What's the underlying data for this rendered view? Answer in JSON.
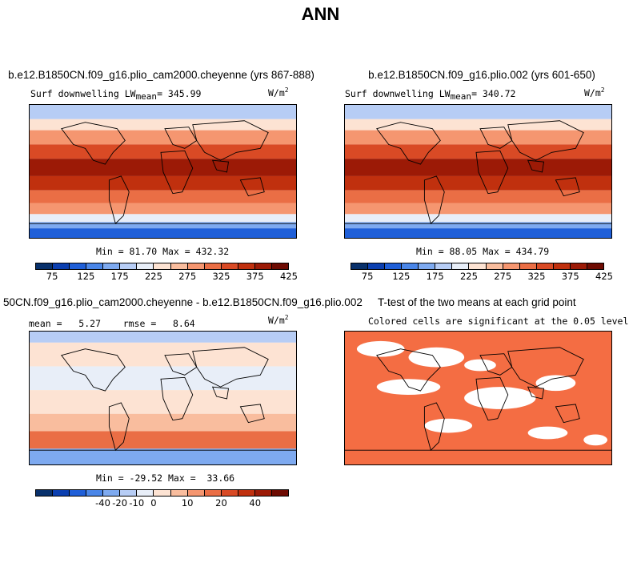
{
  "title": "ANN",
  "panels": {
    "p1": {
      "title": "b.e12.B1850CN.f09_g16.plio_cam2000.cheyenne (yrs 867-888)",
      "variable": "Surf downwelling LW",
      "mean_label": "mean",
      "mean_value": "= 345.99",
      "units_base": "W/m",
      "units_exp": "2",
      "min_max": "Min =  81.70 Max = 432.32"
    },
    "p2": {
      "title": "b.e12.B1850CN.f09_g16.plio.002 (yrs 601-650)",
      "variable": "Surf downwelling LW",
      "mean_label": "mean",
      "mean_value": "= 340.72",
      "units_base": "W/m",
      "units_exp": "2",
      "min_max": "Min =  88.05 Max = 434.79"
    },
    "p3": {
      "title": "50CN.f09_g16.plio_cam2000.cheyenne - b.e12.B1850CN.f09_g16.plio.002",
      "stats": "mean =   5.27    rmse =   8.64",
      "units_base": "W/m",
      "units_exp": "2",
      "min_max": "Min = -29.52 Max =  33.66"
    },
    "p4": {
      "title": "T-test of the two means at each grid point",
      "subtitle": "Colored cells are significant at the 0.05 level"
    }
  },
  "colorbars": {
    "absolute": {
      "colors": [
        "#08306b",
        "#0b3fb0",
        "#1f5fd8",
        "#4a86e8",
        "#7eaaf0",
        "#b7cdf5",
        "#e8eef8",
        "#fde3d3",
        "#f9bd9e",
        "#f59670",
        "#ea6e45",
        "#d94a25",
        "#c0300e",
        "#9c1a06",
        "#6e0b02"
      ],
      "tick_labels": [
        "75",
        "125",
        "175",
        "225",
        "275",
        "325",
        "375",
        "425"
      ]
    },
    "difference": {
      "colors": [
        "#08306b",
        "#0b3fb0",
        "#1f5fd8",
        "#4a86e8",
        "#7eaaf0",
        "#b7cdf5",
        "#e8eef8",
        "#fde3d3",
        "#f9bd9e",
        "#f59670",
        "#ea6e45",
        "#d94a25",
        "#c0300e",
        "#9c1a06",
        "#6e0b02"
      ],
      "tick_labels": [
        "-40",
        "-20",
        "-10",
        "0",
        "10",
        "20",
        "40"
      ]
    }
  },
  "significance_color": "#f46d43"
}
